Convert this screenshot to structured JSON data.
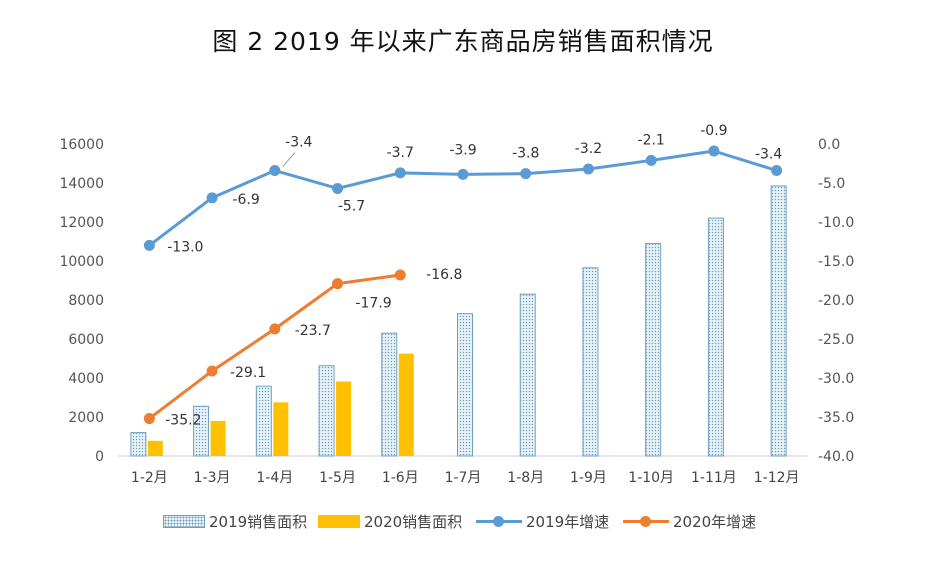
{
  "title": "图 2   2019 年以来广东商品房销售面积情况",
  "chart_data": {
    "type": "bar",
    "categories": [
      "1-2月",
      "1-3月",
      "1-4月",
      "1-5月",
      "1-6月",
      "1-7月",
      "1-8月",
      "1-9月",
      "1-10月",
      "1-11月",
      "1-12月"
    ],
    "series": [
      {
        "name": "2019销售面积",
        "type": "bar",
        "axis": "left",
        "color": "#6f9fbf",
        "values": [
          1200,
          2550,
          3580,
          4630,
          6300,
          7300,
          8300,
          9650,
          10900,
          12200,
          13850
        ]
      },
      {
        "name": "2020销售面积",
        "type": "bar",
        "axis": "left",
        "color": "#ffc000",
        "values": [
          780,
          1800,
          2750,
          3820,
          5250,
          null,
          null,
          null,
          null,
          null,
          null
        ]
      },
      {
        "name": "2019年增速",
        "type": "line",
        "axis": "right",
        "color": "#5b9bd5",
        "values": [
          -13.0,
          -6.9,
          -3.4,
          -5.7,
          -3.7,
          -3.9,
          -3.8,
          -3.2,
          -2.1,
          -0.9,
          -3.4
        ],
        "labels": [
          "-13.0",
          "-6.9",
          "-3.4",
          "-5.7",
          "-3.7",
          "-3.9",
          "-3.8",
          "-3.2",
          "-2.1",
          "-0.9",
          "-3.4"
        ]
      },
      {
        "name": "2020年增速",
        "type": "line",
        "axis": "right",
        "color": "#ed7d31",
        "values": [
          -35.2,
          -29.1,
          -23.7,
          -17.9,
          -16.8,
          null,
          null,
          null,
          null,
          null,
          null
        ],
        "labels": [
          "-35.2",
          "-29.1",
          "-23.7",
          "-17.9",
          "-16.8"
        ]
      }
    ],
    "left_axis": {
      "ylim": [
        0,
        16000
      ],
      "ticks": [
        "0",
        "2000",
        "4000",
        "6000",
        "8000",
        "10000",
        "12000",
        "14000",
        "16000"
      ]
    },
    "right_axis": {
      "ylim": [
        -40.0,
        0.0
      ],
      "ticks": [
        "-40.0",
        "-35.0",
        "-30.0",
        "-25.0",
        "-20.0",
        "-15.0",
        "-10.0",
        "-5.0",
        "0.0"
      ]
    },
    "grid": false,
    "legend": "bottom"
  },
  "legend_items": [
    "2019销售面积",
    "2020销售面积",
    "2019年增速",
    "2020年增速"
  ]
}
